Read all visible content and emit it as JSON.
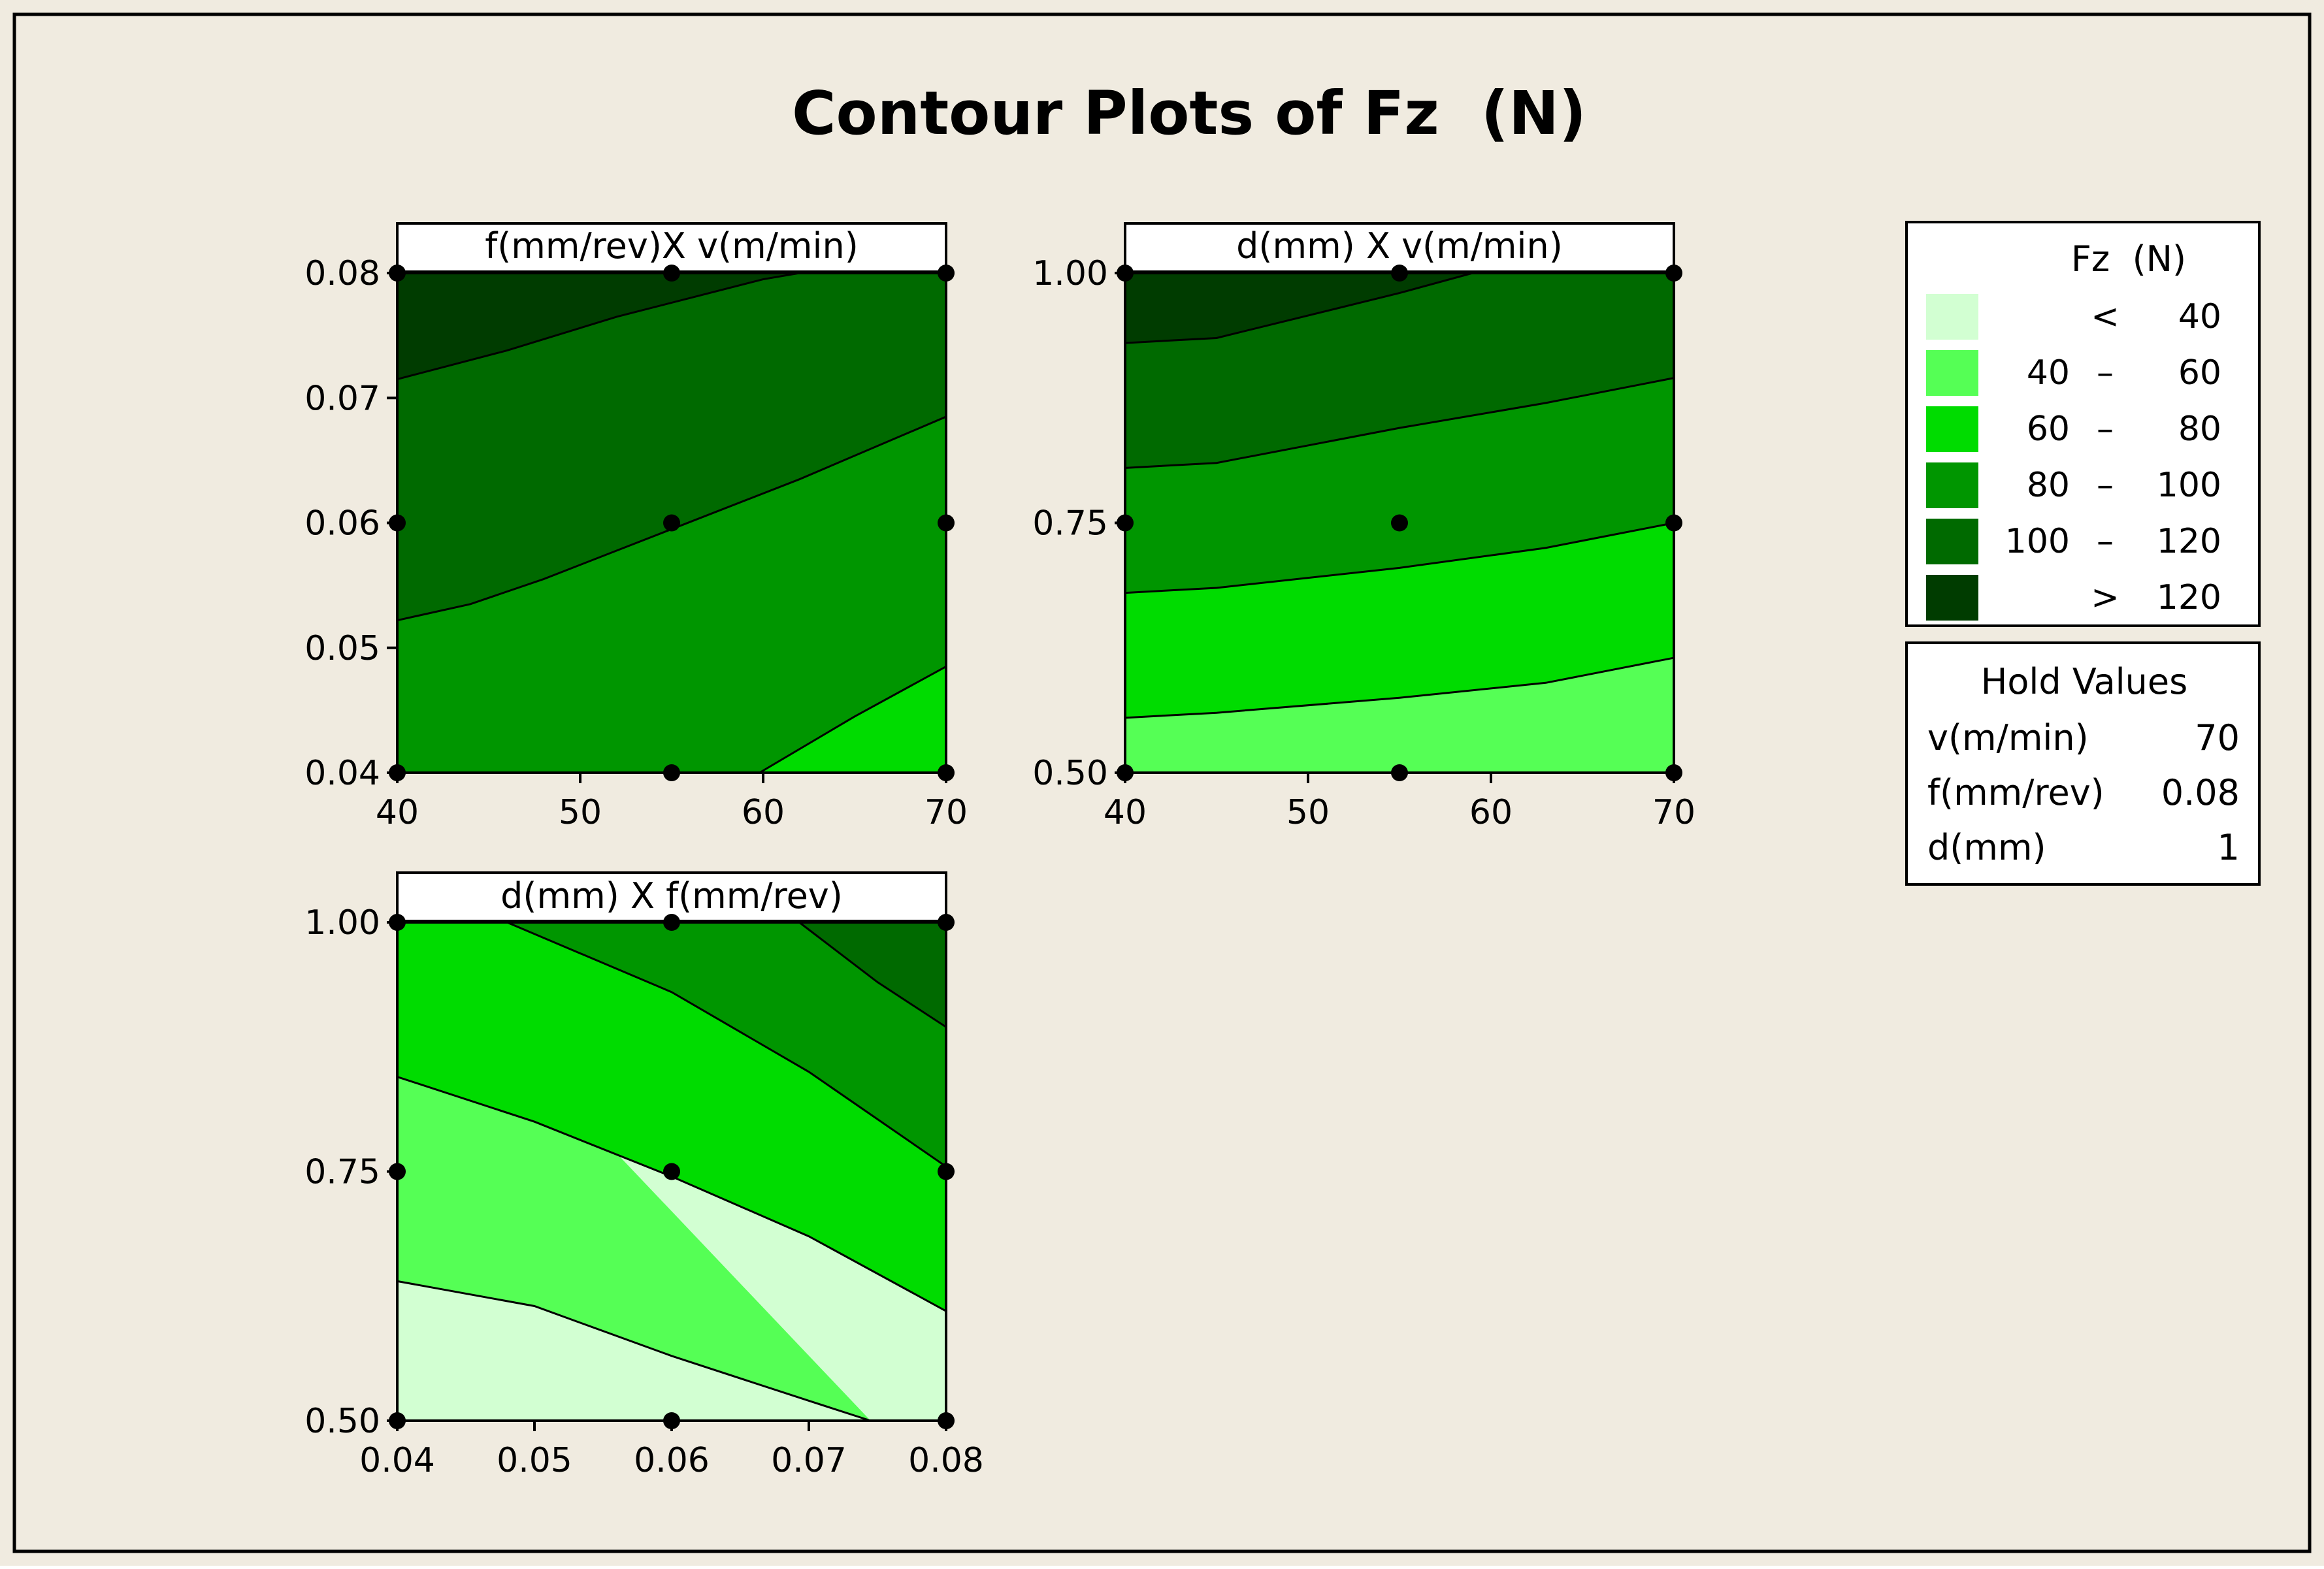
{
  "title": "Contour Plots of Fz  (N)",
  "colors": {
    "background": "#F0EBE0",
    "lt40": "#D2FFD2",
    "40-60": "#55FF55",
    "60-80": "#00DC00",
    "80-100": "#009600",
    "100-120": "#006A00",
    "gt120": "#003C00"
  },
  "legend": {
    "title": "Fz  (N)",
    "items": [
      {
        "low": "",
        "sep": "<",
        "high": "40",
        "color": "#D2FFD2"
      },
      {
        "low": "40",
        "sep": "–",
        "high": "60",
        "color": "#55FF55"
      },
      {
        "low": "60",
        "sep": "–",
        "high": "80",
        "color": "#00DC00"
      },
      {
        "low": "80",
        "sep": "–",
        "high": "100",
        "color": "#009600"
      },
      {
        "low": "100",
        "sep": "–",
        "high": "120",
        "color": "#006A00"
      },
      {
        "low": "",
        "sep": ">",
        "high": "120",
        "color": "#003C00"
      }
    ]
  },
  "hold_values": {
    "title": "Hold Values",
    "rows": [
      {
        "name": "v(m/min)",
        "value": "70"
      },
      {
        "name": "f(mm/rev)",
        "value": "0.08"
      },
      {
        "name": "d(mm)",
        "value": "1"
      }
    ]
  },
  "chart_data": [
    {
      "type": "contour",
      "panel_title": "f(mm/rev)X v(m/min)",
      "xlim": [
        40,
        70
      ],
      "ylim": [
        0.04,
        0.08
      ],
      "xticks": [
        "40",
        "50",
        "60",
        "70"
      ],
      "yticks": [
        "0.04",
        "0.05",
        "0.06",
        "0.07",
        "0.08"
      ],
      "levels": [
        100,
        120
      ],
      "contours": [
        {
          "level": 60,
          "points": [
            [
              59.8,
              0.04
            ],
            [
              65,
              0.0445
            ],
            [
              70,
              0.0485
            ]
          ]
        },
        {
          "level": 80,
          "points": [
            [
              40,
              0.0522
            ],
            [
              44,
              0.0535
            ],
            [
              48,
              0.0555
            ],
            [
              55,
              0.0595
            ],
            [
              62,
              0.0635
            ],
            [
              70,
              0.0685
            ]
          ]
        },
        {
          "level": 100,
          "points": [
            [
              40,
              0.0715
            ],
            [
              46,
              0.0738
            ],
            [
              52,
              0.0765
            ],
            [
              60,
              0.0795
            ],
            [
              62,
              0.08
            ]
          ]
        }
      ],
      "regions": [
        {
          "color_key": "60-80",
          "fill": "#00DC00"
        },
        {
          "color_key": "80-100",
          "fill": "#009600"
        },
        {
          "color_key": "100-120",
          "fill": "#006A00"
        },
        {
          "color_key": "gt120",
          "fill": "#003C00"
        }
      ],
      "design_points": [
        [
          40,
          0.04
        ],
        [
          55,
          0.04
        ],
        [
          70,
          0.04
        ],
        [
          40,
          0.06
        ],
        [
          55,
          0.06
        ],
        [
          70,
          0.06
        ],
        [
          40,
          0.08
        ],
        [
          55,
          0.08
        ],
        [
          70,
          0.08
        ]
      ]
    },
    {
      "type": "contour",
      "panel_title": "d(mm) X v(m/min)",
      "xlim": [
        40,
        70
      ],
      "ylim": [
        0.5,
        1.0
      ],
      "xticks": [
        "40",
        "50",
        "60",
        "70"
      ],
      "yticks": [
        "0.50",
        "0.75",
        "1.00"
      ],
      "contours": [
        {
          "level": 40,
          "points": [
            [
              40,
              0.555
            ],
            [
              45,
              0.56
            ],
            [
              55,
              0.575
            ],
            [
              63,
              0.59
            ],
            [
              70,
              0.615
            ]
          ]
        },
        {
          "level": 60,
          "points": [
            [
              40,
              0.68
            ],
            [
              45,
              0.685
            ],
            [
              55,
              0.705
            ],
            [
              63,
              0.725
            ],
            [
              70,
              0.75
            ]
          ]
        },
        {
          "level": 80,
          "points": [
            [
              40,
              0.805
            ],
            [
              45,
              0.81
            ],
            [
              55,
              0.845
            ],
            [
              63,
              0.87
            ],
            [
              70,
              0.895
            ]
          ]
        },
        {
          "level": 100,
          "points": [
            [
              40,
              0.93
            ],
            [
              45,
              0.935
            ],
            [
              55,
              0.98
            ],
            [
              59,
              1.0
            ]
          ]
        }
      ],
      "design_points": [
        [
          40,
          0.5
        ],
        [
          55,
          0.5
        ],
        [
          70,
          0.5
        ],
        [
          40,
          0.75
        ],
        [
          55,
          0.75
        ],
        [
          70,
          0.75
        ],
        [
          40,
          1.0
        ],
        [
          55,
          1.0
        ],
        [
          70,
          1.0
        ]
      ]
    },
    {
      "type": "contour",
      "panel_title": "d(mm) X f(mm/rev)",
      "xlim": [
        0.04,
        0.08
      ],
      "ylim": [
        0.5,
        1.0
      ],
      "xticks": [
        "0.04",
        "0.05",
        "0.06",
        "0.07",
        "0.08"
      ],
      "yticks": [
        "0.50",
        "0.75",
        "1.00"
      ],
      "contours": [
        {
          "level": 40,
          "points": [
            [
              0.04,
              0.64
            ],
            [
              0.05,
              0.615
            ],
            [
              0.06,
              0.565
            ],
            [
              0.07,
              0.52
            ],
            [
              0.0745,
              0.5
            ]
          ]
        },
        {
          "level": 60,
          "points": [
            [
              0.04,
              0.845
            ],
            [
              0.05,
              0.8
            ],
            [
              0.06,
              0.745
            ],
            [
              0.07,
              0.685
            ],
            [
              0.08,
              0.61
            ]
          ]
        },
        {
          "level": 80,
          "points": [
            [
              0.048,
              1.0
            ],
            [
              0.06,
              0.93
            ],
            [
              0.07,
              0.85
            ],
            [
              0.08,
              0.755
            ]
          ]
        },
        {
          "level": 100,
          "points": [
            [
              0.0693,
              1.0
            ],
            [
              0.075,
              0.94
            ],
            [
              0.08,
              0.895
            ]
          ]
        }
      ],
      "design_points": [
        [
          0.04,
          0.5
        ],
        [
          0.06,
          0.5
        ],
        [
          0.08,
          0.5
        ],
        [
          0.04,
          0.75
        ],
        [
          0.06,
          0.75
        ],
        [
          0.08,
          0.75
        ],
        [
          0.04,
          1.0
        ],
        [
          0.06,
          1.0
        ],
        [
          0.08,
          1.0
        ]
      ]
    }
  ]
}
